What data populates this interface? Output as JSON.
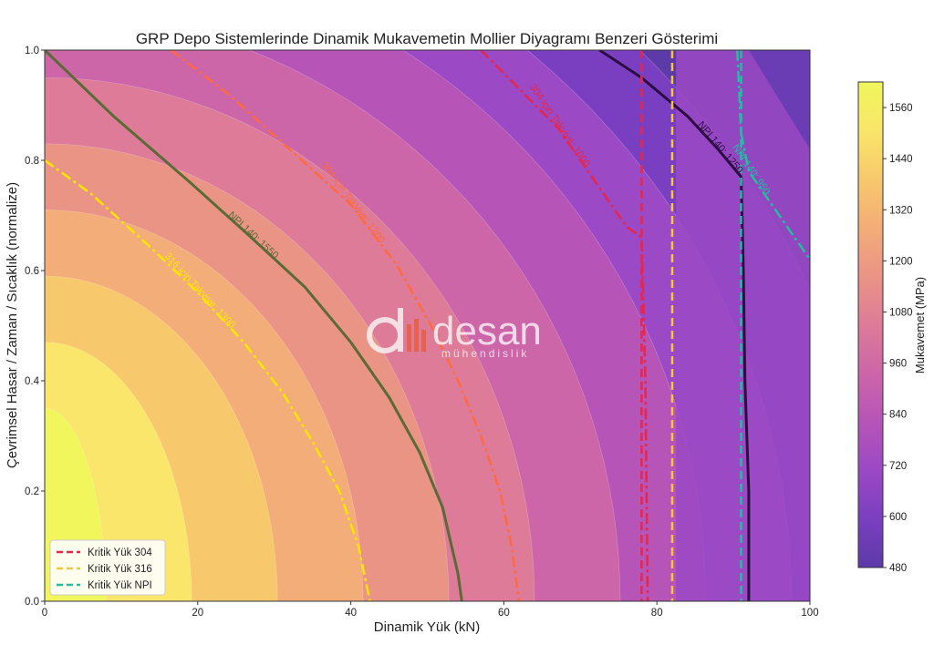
{
  "chart_data": {
    "type": "heatmap",
    "title": "GRP Depo Sistemlerinde Dinamik Mukavemetin Mollier Diyagramı Benzeri Gösterimi",
    "xlabel": "Dinamik Yük (kN)",
    "ylabel": "Çevrimsel Hasar / Zaman / Sıcaklık (normalize)",
    "xlim": [
      0,
      100
    ],
    "ylim": [
      0.0,
      1.0
    ],
    "xticks": [
      0,
      20,
      40,
      60,
      80,
      100
    ],
    "yticks": [
      0.0,
      0.2,
      0.4,
      0.6,
      0.8,
      1.0
    ],
    "grid": false,
    "colorbar": {
      "label": "Mukavemet (MPa)",
      "range": [
        480,
        1620
      ],
      "ticks": [
        480,
        600,
        720,
        840,
        960,
        1080,
        1200,
        1320,
        1440,
        1560
      ],
      "colors": [
        "#5c3aa8",
        "#7a3fc0",
        "#9b49c4",
        "#b654b8",
        "#cc66a8",
        "#dd7b98",
        "#ea9486",
        "#f3ad78",
        "#f8c86c",
        "#f9e66a",
        "#f0f65c"
      ]
    },
    "contours": [
      {
        "label": "304 için Takviye: 1200",
        "color": "#ff6a3d",
        "style": "dashdot",
        "points": [
          [
            16.5,
            1.0
          ],
          [
            24,
            0.92
          ],
          [
            32,
            0.82
          ],
          [
            40,
            0.72
          ],
          [
            46,
            0.61
          ],
          [
            50.5,
            0.5
          ],
          [
            54,
            0.4
          ],
          [
            57,
            0.3
          ],
          [
            59.5,
            0.2
          ],
          [
            61,
            0.1
          ],
          [
            62,
            0.0
          ]
        ]
      },
      {
        "label": "316 için Takviye: 1300",
        "color": "#ffe600",
        "style": "dashdot",
        "points": [
          [
            0,
            0.8
          ],
          [
            6,
            0.74
          ],
          [
            14,
            0.64
          ],
          [
            20,
            0.56
          ],
          [
            26,
            0.47
          ],
          [
            31,
            0.38
          ],
          [
            35,
            0.29
          ],
          [
            38.5,
            0.2
          ],
          [
            41,
            0.1
          ],
          [
            42.5,
            0.0
          ]
        ]
      },
      {
        "label": "NPI 140: 1550",
        "color": "#5a6b35",
        "style": "solid",
        "points": [
          [
            0,
            1.0
          ],
          [
            9,
            0.88
          ],
          [
            19,
            0.76
          ],
          [
            27,
            0.66
          ],
          [
            34,
            0.57
          ],
          [
            40,
            0.47
          ],
          [
            45,
            0.37
          ],
          [
            49,
            0.27
          ],
          [
            52,
            0.17
          ],
          [
            54,
            0.05
          ],
          [
            54.5,
            0.0
          ]
        ]
      },
      {
        "label": "304 için Takviye: 1000",
        "color": "#e8264a",
        "style": "dashdot",
        "points": [
          [
            57,
            1.0
          ],
          [
            62,
            0.93
          ],
          [
            67,
            0.86
          ],
          [
            72,
            0.76
          ],
          [
            76,
            0.68
          ],
          [
            78,
            0.66
          ],
          [
            78.5,
            0.4
          ],
          [
            78.8,
            0.0
          ]
        ]
      },
      {
        "label": "NPI 140: 1250",
        "color": "#2d0c44",
        "style": "solid",
        "points": [
          [
            72.5,
            1.0
          ],
          [
            78,
            0.95
          ],
          [
            84,
            0.88
          ],
          [
            88,
            0.82
          ],
          [
            91,
            0.77
          ],
          [
            91.3,
            0.6
          ],
          [
            91.5,
            0.4
          ],
          [
            92,
            0.2
          ],
          [
            92,
            0.0
          ]
        ]
      },
      {
        "label": "NPI 140: 950",
        "color": "#1ec0a0",
        "style": "dashdot",
        "points": [
          [
            90.5,
            1.0
          ],
          [
            91,
            0.85
          ],
          [
            92,
            0.78
          ],
          [
            95,
            0.72
          ],
          [
            98,
            0.66
          ],
          [
            100,
            0.62
          ]
        ]
      }
    ],
    "critical_lines": [
      {
        "name": "Kritik Yük 304",
        "x": 78,
        "color": "#e8264a"
      },
      {
        "name": "Kritik Yük 316",
        "x": 82,
        "color": "#f5c542"
      },
      {
        "name": "Kritik Yük NPI",
        "x": 91,
        "color": "#1ec0a0"
      }
    ],
    "legend_position": "lower-left"
  },
  "watermark": {
    "brand": "desan",
    "sub": "mühendislik",
    "color": "#ea5a35"
  }
}
